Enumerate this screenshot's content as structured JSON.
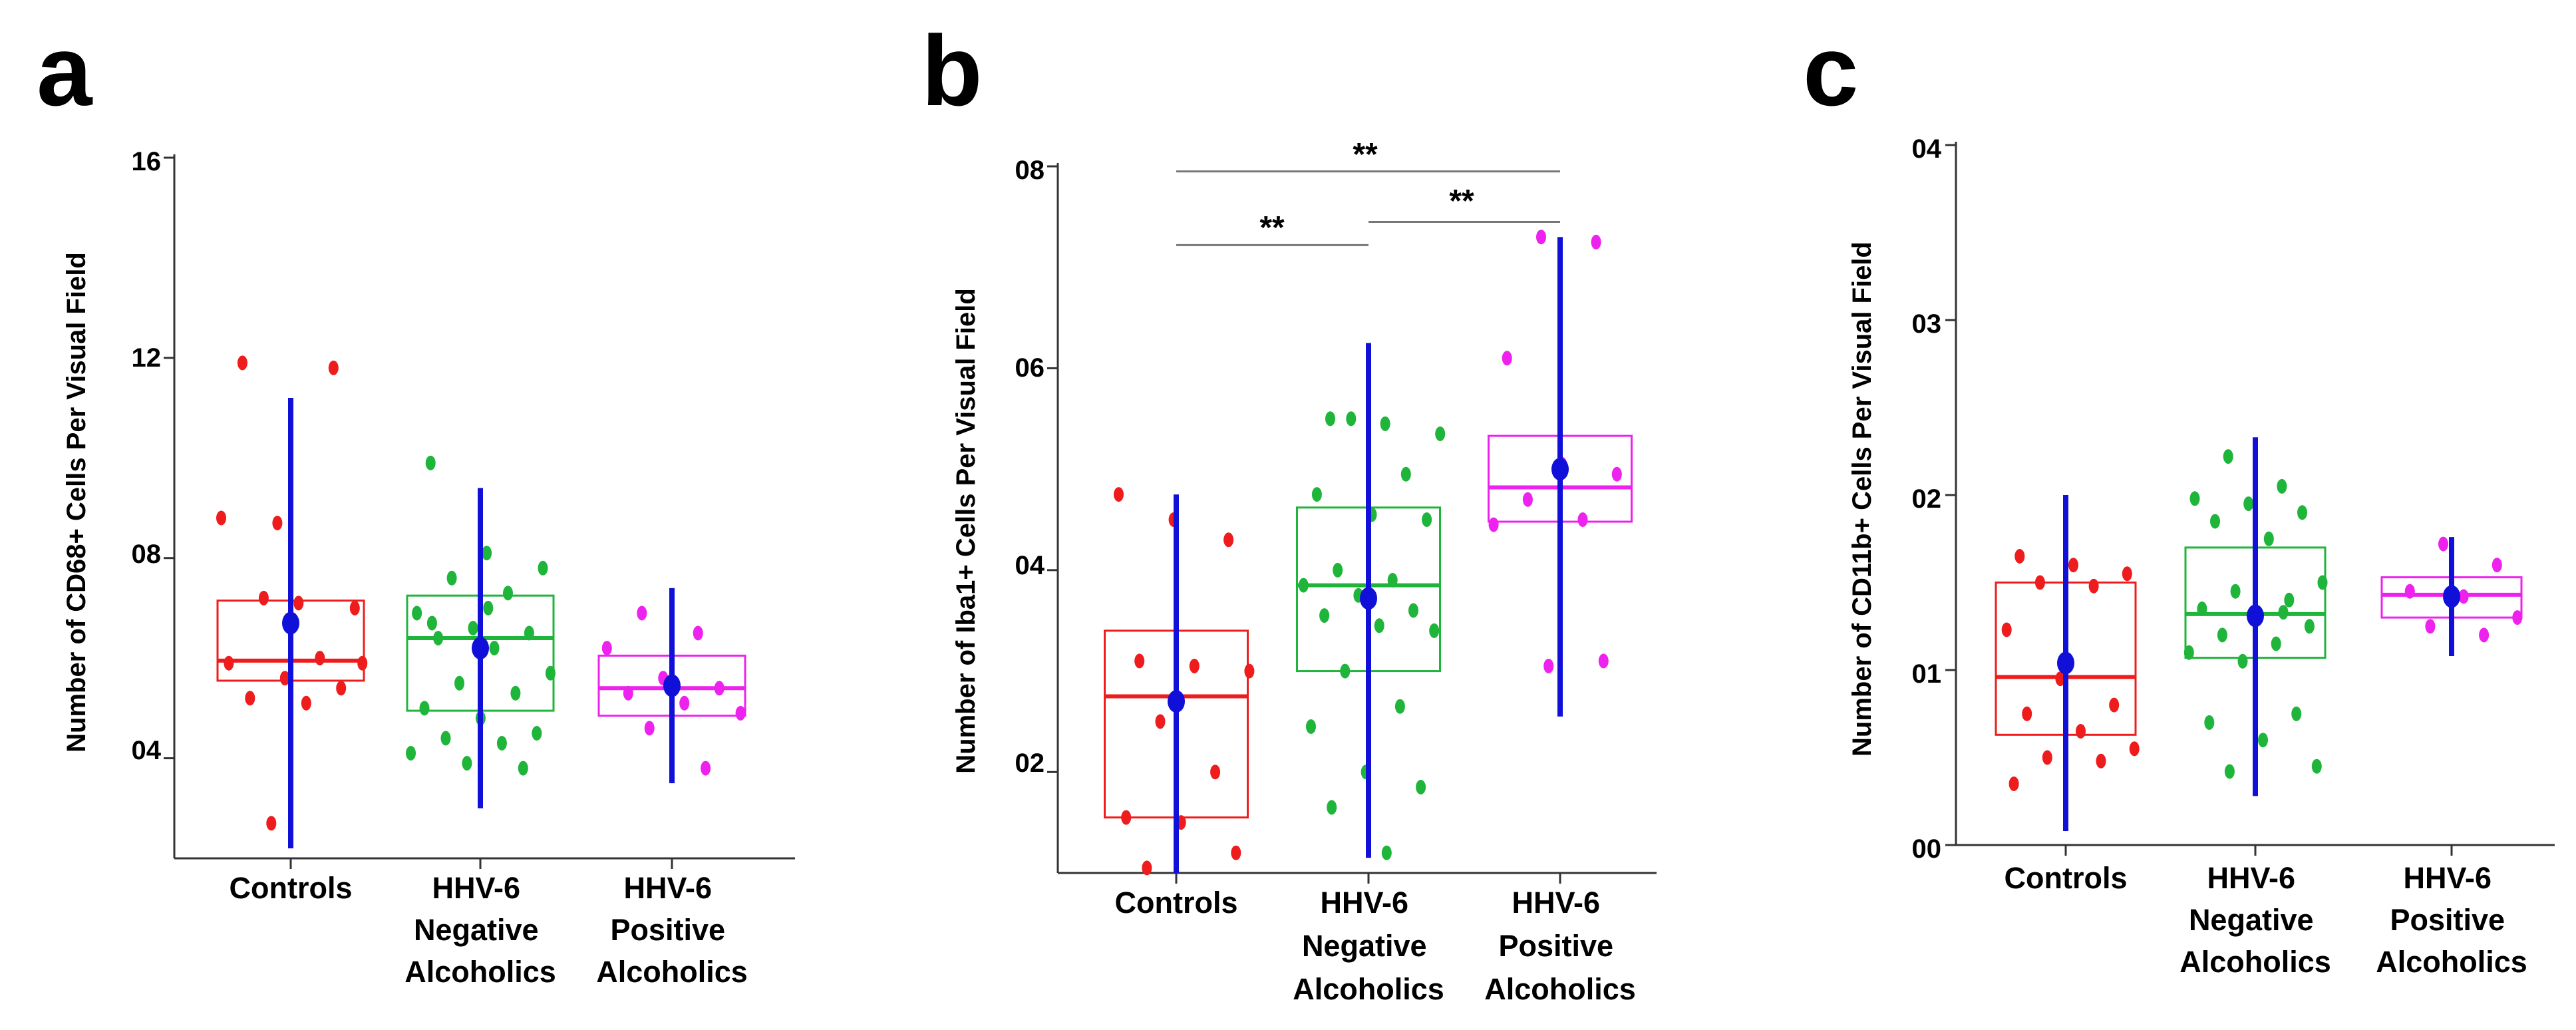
{
  "figure": {
    "panels": [
      {
        "letter": "a",
        "ylabel": "Number of CD68+ Cells Per Visual Field",
        "ytick_labels": [
          "04",
          "08",
          "12",
          "16"
        ]
      },
      {
        "letter": "b",
        "ylabel": "Number of Iba1+ Cells Per Visual Field",
        "ytick_labels": [
          "02",
          "04",
          "06",
          "08"
        ],
        "significance": [
          "**",
          "**",
          "**"
        ]
      },
      {
        "letter": "c",
        "ylabel": "Number of CD11b+ Cells Per Visual Field",
        "ytick_labels": [
          "00",
          "01",
          "02",
          "03",
          "04"
        ]
      }
    ],
    "categories": [
      [
        "Controls"
      ],
      [
        "HHV-6",
        "Negative",
        "Alcoholics"
      ],
      [
        "HHV-6",
        "Positive",
        "Alcoholics"
      ]
    ]
  },
  "chart_data": [
    {
      "type": "scatter",
      "title": "a",
      "ylabel": "Number of CD68+ Cells Per Visual Field",
      "ylim": [
        2.0,
        16.0
      ],
      "yticks": [
        4,
        8,
        12,
        16
      ],
      "categories": [
        "Controls",
        "HHV-6 Negative Alcoholics",
        "HHV-6 Positive Alcoholics"
      ],
      "colors": [
        "#ee1c1c",
        "#1fb53a",
        "#ee22ee"
      ],
      "mean_color": "#1010d8",
      "groups": [
        {
          "name": "Controls",
          "box": {
            "q1": 5.55,
            "median": 5.95,
            "q3": 7.15
          },
          "mean": 6.7,
          "whisker": [
            2.2,
            11.2
          ],
          "points": [
            8.8,
            8.7,
            11.8,
            11.9,
            7.1,
            7.0,
            7.2,
            6.0,
            5.9,
            5.6,
            5.4,
            5.2,
            5.1,
            5.9,
            2.7
          ]
        },
        {
          "name": "HHV-6 Negative Alcoholics",
          "box": {
            "q1": 4.95,
            "median": 6.4,
            "q3": 7.25
          },
          "mean": 6.2,
          "whisker": [
            3.0,
            9.4
          ],
          "points": [
            9.9,
            8.1,
            7.8,
            7.6,
            7.3,
            6.9,
            6.6,
            6.5,
            6.4,
            6.2,
            5.7,
            5.5,
            5.3,
            5.0,
            4.8,
            4.5,
            4.4,
            4.3,
            4.1,
            3.9,
            3.8,
            6.7,
            7.0
          ]
        },
        {
          "name": "HHV-6 Positive Alcoholics",
          "box": {
            "q1": 4.85,
            "median": 5.4,
            "q3": 6.05
          },
          "mean": 5.45,
          "whisker": [
            3.5,
            7.4
          ],
          "points": [
            6.9,
            6.5,
            6.2,
            5.6,
            5.4,
            5.3,
            5.1,
            4.9,
            4.6,
            3.8
          ]
        }
      ]
    },
    {
      "type": "scatter",
      "title": "b",
      "ylabel": "Number of Iba1+ Cells Per Visual Field",
      "ylim": [
        1.0,
        8.0
      ],
      "yticks": [
        2,
        4,
        6,
        8
      ],
      "categories": [
        "Controls",
        "HHV-6 Negative Alcoholics",
        "HHV-6 Positive Alcoholics"
      ],
      "colors": [
        "#ee1c1c",
        "#1fb53a",
        "#ee22ee"
      ],
      "mean_color": "#1010d8",
      "groups": [
        {
          "name": "Controls",
          "box": {
            "q1": 1.55,
            "median": 2.75,
            "q3": 3.4
          },
          "mean": 2.7,
          "whisker": [
            1.0,
            4.75
          ],
          "points": [
            4.75,
            4.5,
            4.3,
            3.1,
            3.05,
            3.0,
            2.5,
            2.0,
            1.55,
            1.5,
            1.2,
            1.05
          ]
        },
        {
          "name": "HHV-6 Negative Alcoholics",
          "box": {
            "q1": 3.0,
            "median": 3.85,
            "q3": 4.62
          },
          "mean": 3.72,
          "whisker": [
            1.15,
            6.25
          ],
          "points": [
            5.5,
            5.45,
            5.35,
            5.5,
            4.95,
            4.75,
            4.55,
            4.5,
            4.0,
            3.9,
            3.85,
            3.75,
            3.6,
            3.55,
            3.45,
            3.4,
            3.0,
            2.65,
            2.45,
            2.0,
            1.85,
            1.65,
            1.2
          ]
        },
        {
          "name": "HHV-6 Positive Alcoholics",
          "box": {
            "q1": 4.48,
            "median": 4.82,
            "q3": 5.33
          },
          "mean": 5.0,
          "whisker": [
            2.55,
            7.3
          ],
          "points": [
            7.3,
            7.25,
            6.1,
            5.05,
            4.95,
            4.7,
            4.5,
            4.45,
            3.05,
            3.1
          ]
        }
      ],
      "annotations": [
        {
          "from": 0,
          "to": 2,
          "label": "**",
          "y": 7.95
        },
        {
          "from": 0,
          "to": 1,
          "label": "**",
          "y": 7.22
        },
        {
          "from": 1,
          "to": 2,
          "label": "**",
          "y": 7.45
        }
      ]
    },
    {
      "type": "scatter",
      "title": "c",
      "ylabel": "Number of CD11b+ Cells Per Visual Field",
      "ylim": [
        0.0,
        4.0
      ],
      "yticks": [
        0,
        1,
        2,
        3,
        4
      ],
      "categories": [
        "Controls",
        "HHV-6 Negative Alcoholics",
        "HHV-6 Positive Alcoholics"
      ],
      "colors": [
        "#ee1c1c",
        "#1fb53a",
        "#ee22ee"
      ],
      "mean_color": "#1010d8",
      "groups": [
        {
          "name": "Controls",
          "box": {
            "q1": 0.63,
            "median": 0.96,
            "q3": 1.5
          },
          "mean": 1.04,
          "whisker": [
            0.08,
            2.0
          ],
          "points": [
            1.65,
            1.6,
            1.55,
            1.5,
            1.48,
            1.23,
            0.95,
            0.8,
            0.75,
            0.65,
            0.55,
            0.5,
            0.48,
            0.35
          ]
        },
        {
          "name": "HHV-6 Negative Alcoholics",
          "box": {
            "q1": 1.07,
            "median": 1.32,
            "q3": 1.7
          },
          "mean": 1.31,
          "whisker": [
            0.28,
            2.33
          ],
          "points": [
            2.22,
            2.05,
            1.98,
            1.95,
            1.9,
            1.85,
            1.75,
            1.5,
            1.45,
            1.4,
            1.35,
            1.3,
            1.25,
            1.2,
            1.15,
            1.1,
            1.05,
            0.75,
            0.7,
            0.6,
            0.45,
            0.42,
            1.33
          ]
        },
        {
          "name": "HHV-6 Positive Alcoholics",
          "box": {
            "q1": 1.3,
            "median": 1.43,
            "q3": 1.53
          },
          "mean": 1.42,
          "whisker": [
            1.08,
            1.76
          ],
          "points": [
            1.72,
            1.6,
            1.45,
            1.42,
            1.3,
            1.25,
            1.2
          ]
        }
      ]
    }
  ]
}
